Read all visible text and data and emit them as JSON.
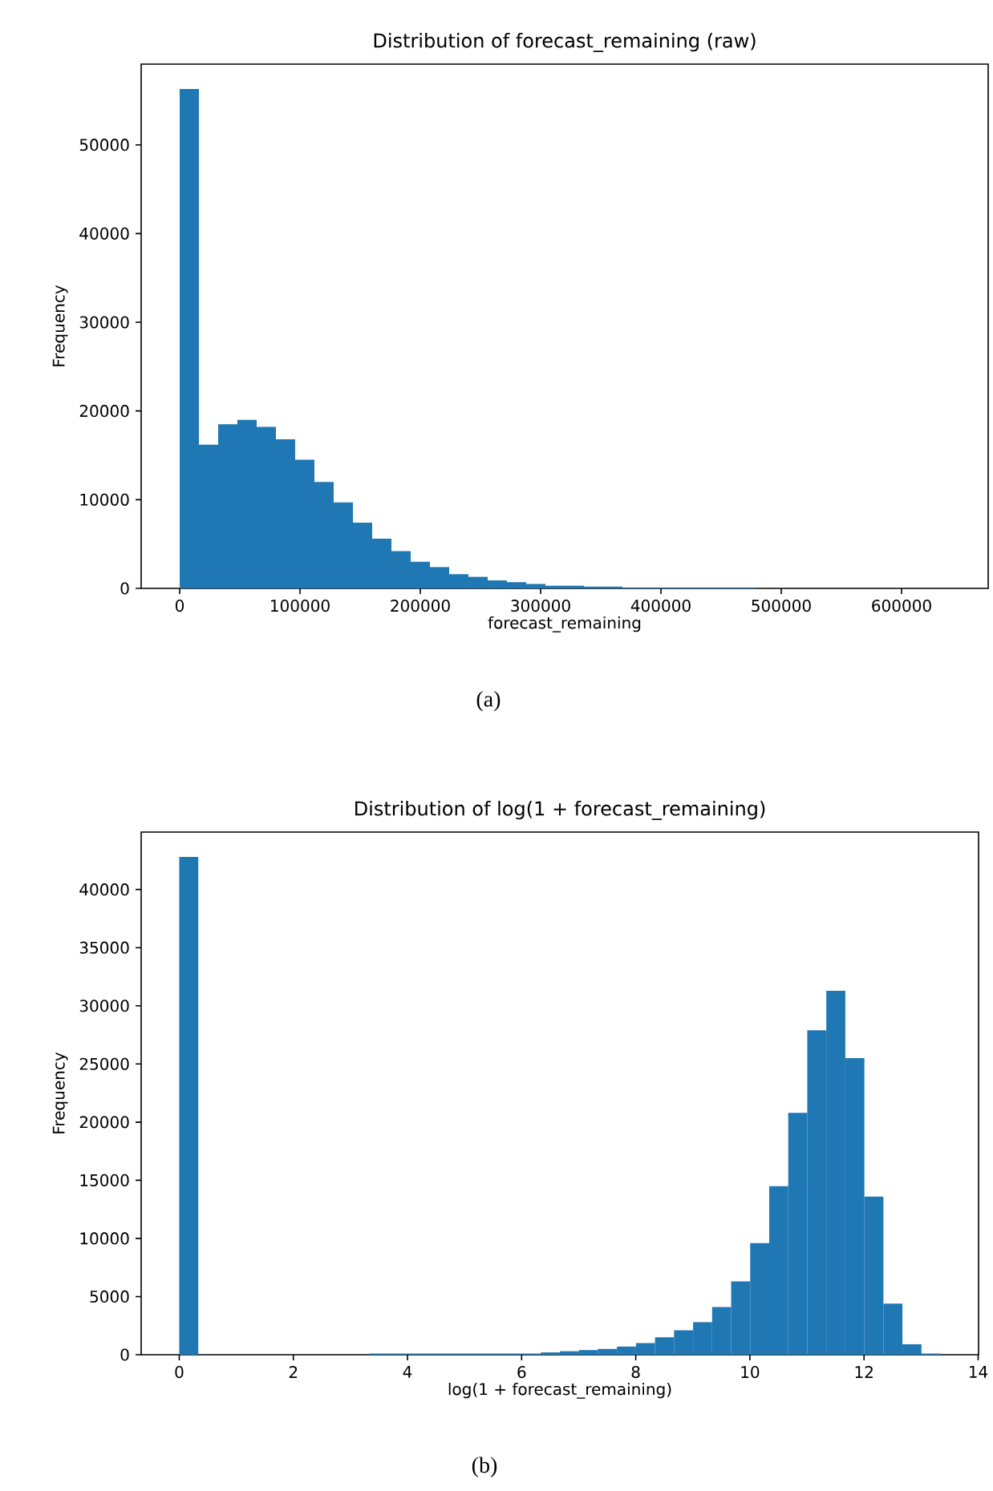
{
  "chart_data": [
    {
      "type": "histogram",
      "title": "Distribution of forecast_remaining (raw)",
      "xlabel": "forecast_remaining",
      "ylabel": "Frequency",
      "color": "#1f77b4",
      "bins": [
        0,
        16000,
        32000,
        48000,
        64000,
        80000,
        96000,
        112000,
        128000,
        144000,
        160000,
        176000,
        192000,
        208000,
        224000,
        240000,
        256000,
        272000,
        288000,
        304000,
        320000,
        336000,
        352000,
        368000,
        384000,
        400000,
        416000,
        432000,
        448000,
        464000,
        480000,
        496000,
        512000,
        528000,
        544000,
        560000,
        576000,
        592000,
        608000,
        624000,
        640000
      ],
      "values": [
        56300,
        16200,
        18500,
        19000,
        18200,
        16800,
        14500,
        12000,
        9700,
        7400,
        5600,
        4200,
        3000,
        2400,
        1600,
        1300,
        900,
        700,
        500,
        300,
        300,
        200,
        200,
        100,
        100,
        100,
        100,
        100,
        100,
        100,
        0,
        0,
        0,
        0,
        0,
        0,
        0,
        0,
        0,
        0
      ],
      "xlim": [
        -32000,
        672000
      ],
      "ylim": [
        0,
        59100
      ],
      "xticks": [
        0,
        100000,
        200000,
        300000,
        400000,
        500000,
        600000
      ],
      "yticks": [
        0,
        10000,
        20000,
        30000,
        40000,
        50000
      ],
      "annotations": [
        "(a)"
      ]
    },
    {
      "type": "histogram",
      "title": "Distribution of log(1 + forecast_remaining)",
      "xlabel": "log(1 + forecast_remaining)",
      "ylabel": "Frequency",
      "color": "#1f77b4",
      "bins": [
        0,
        0.3335,
        0.667,
        1.0005,
        1.334,
        1.6675,
        2.001,
        2.3345,
        2.668,
        3.0015,
        3.335,
        3.6685,
        4.002,
        4.3355,
        4.669,
        5.0025,
        5.336,
        5.6695,
        6.003,
        6.3365,
        6.67,
        7.0035,
        7.337,
        7.6705,
        8.004,
        8.3375,
        8.671,
        9.0045,
        9.338,
        9.6715,
        10.005,
        10.3385,
        10.672,
        11.0055,
        11.339,
        11.6725,
        12.006,
        12.3395,
        12.673,
        13.0065,
        13.34
      ],
      "values": [
        42800,
        0,
        0,
        0,
        0,
        0,
        0,
        0,
        0,
        0,
        100,
        100,
        100,
        100,
        100,
        100,
        100,
        100,
        100,
        200,
        300,
        400,
        500,
        700,
        1000,
        1500,
        2100,
        2800,
        4100,
        6300,
        9600,
        14500,
        20800,
        27900,
        31300,
        25500,
        13600,
        4400,
        900,
        100
      ],
      "xlim": [
        -0.667,
        14.007
      ],
      "ylim": [
        0,
        44940
      ],
      "xticks": [
        0,
        2,
        4,
        6,
        8,
        10,
        12,
        14
      ],
      "yticks": [
        0,
        5000,
        10000,
        15000,
        20000,
        25000,
        30000,
        35000,
        40000
      ],
      "annotations": [
        "(b)"
      ]
    }
  ]
}
